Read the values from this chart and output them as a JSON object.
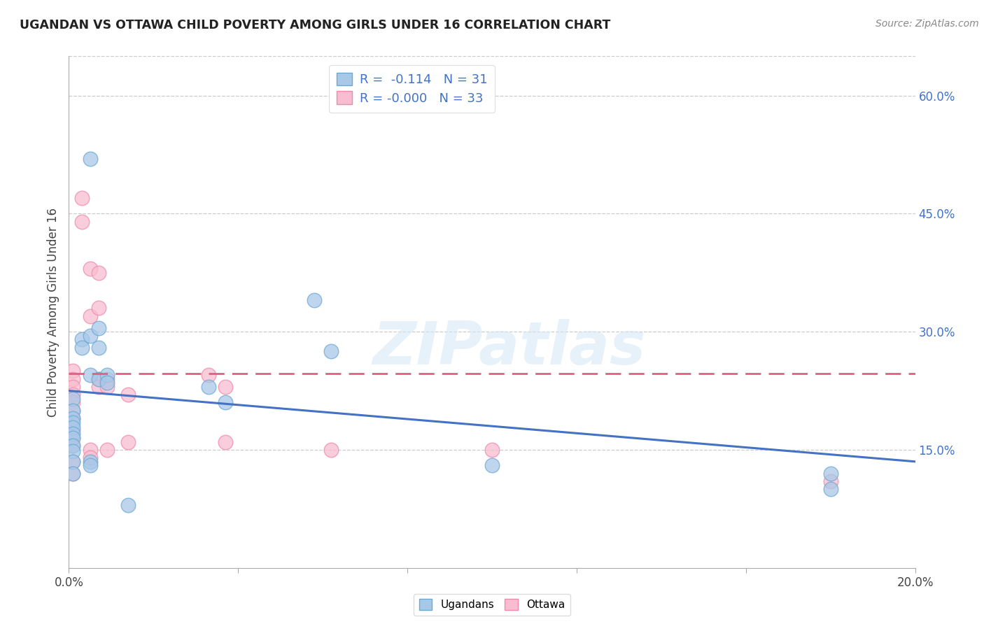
{
  "title": "UGANDAN VS OTTAWA CHILD POVERTY AMONG GIRLS UNDER 16 CORRELATION CHART",
  "source": "Source: ZipAtlas.com",
  "ylabel": "Child Poverty Among Girls Under 16",
  "watermark": "ZIPatlas",
  "ugandan_R": -0.114,
  "ugandan_N": 31,
  "ottawa_R": -0.0,
  "ottawa_N": 33,
  "x_min": 0.0,
  "x_max": 0.2,
  "y_min": 0.0,
  "y_max": 0.65,
  "ugandan_color": "#a8c8e8",
  "ugandan_edge": "#6aaad4",
  "ottawa_color": "#f8bdd0",
  "ottawa_edge": "#f08aaa",
  "trend_ugandan_color": "#4472c4",
  "trend_ottawa_color": "#e06080",
  "ugandan_x": [
    0.001,
    0.001,
    0.001,
    0.001,
    0.001,
    0.001,
    0.001,
    0.001,
    0.001,
    0.001,
    0.001,
    0.003,
    0.003,
    0.005,
    0.005,
    0.005,
    0.005,
    0.005,
    0.007,
    0.007,
    0.007,
    0.009,
    0.009,
    0.014,
    0.033,
    0.037,
    0.058,
    0.062,
    0.1,
    0.18,
    0.18
  ],
  "ugandan_y": [
    0.215,
    0.2,
    0.19,
    0.185,
    0.178,
    0.17,
    0.165,
    0.155,
    0.148,
    0.135,
    0.12,
    0.29,
    0.28,
    0.52,
    0.295,
    0.245,
    0.135,
    0.13,
    0.305,
    0.28,
    0.24,
    0.245,
    0.235,
    0.08,
    0.23,
    0.21,
    0.34,
    0.275,
    0.13,
    0.12,
    0.1
  ],
  "ottawa_x": [
    0.001,
    0.001,
    0.001,
    0.001,
    0.001,
    0.001,
    0.001,
    0.001,
    0.001,
    0.001,
    0.001,
    0.001,
    0.003,
    0.003,
    0.005,
    0.005,
    0.005,
    0.005,
    0.007,
    0.007,
    0.007,
    0.007,
    0.009,
    0.009,
    0.009,
    0.014,
    0.014,
    0.033,
    0.037,
    0.037,
    0.062,
    0.1,
    0.18
  ],
  "ottawa_y": [
    0.25,
    0.24,
    0.23,
    0.22,
    0.21,
    0.2,
    0.19,
    0.175,
    0.165,
    0.155,
    0.135,
    0.12,
    0.47,
    0.44,
    0.38,
    0.32,
    0.15,
    0.14,
    0.375,
    0.33,
    0.24,
    0.23,
    0.24,
    0.23,
    0.15,
    0.22,
    0.16,
    0.245,
    0.23,
    0.16,
    0.15,
    0.15,
    0.11
  ],
  "ug_trend_x0": 0.0,
  "ug_trend_y0": 0.225,
  "ug_trend_x1": 0.2,
  "ug_trend_y1": 0.135,
  "ot_trend_x0": 0.0,
  "ot_trend_y0": 0.247,
  "ot_trend_x1": 0.2,
  "ot_trend_y1": 0.247,
  "background_color": "#ffffff",
  "grid_color": "#cccccc",
  "ytick_right_labels": [
    "60.0%",
    "45.0%",
    "30.0%",
    "15.0%"
  ],
  "ytick_right_values": [
    0.6,
    0.45,
    0.3,
    0.15
  ],
  "xtick_labels": [
    "0.0%",
    "",
    "",
    "",
    "",
    "20.0%"
  ],
  "xtick_values": [
    0.0,
    0.04,
    0.08,
    0.12,
    0.16,
    0.2
  ]
}
